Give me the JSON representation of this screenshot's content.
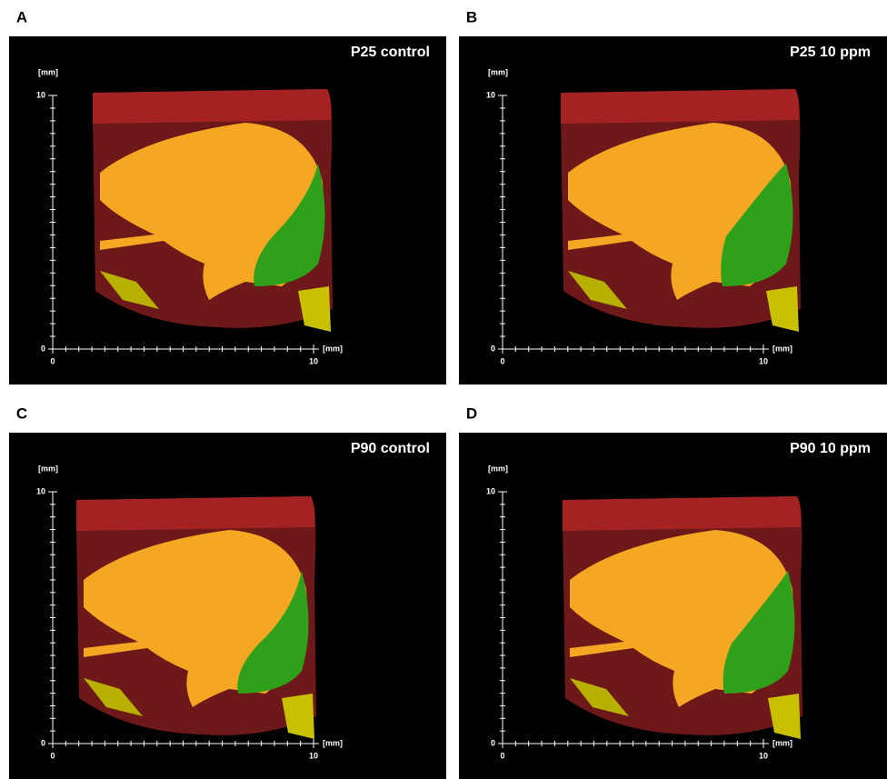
{
  "panels": [
    {
      "letter": "A",
      "title": "P25 control",
      "y_unit": "[mm]",
      "x_unit": "[mm]",
      "yticks": [
        0,
        10
      ],
      "xticks": [
        0,
        10
      ]
    },
    {
      "letter": "B",
      "title": "P25 10 ppm",
      "y_unit": "[mm]",
      "x_unit": "[mm]",
      "yticks": [
        0,
        10
      ],
      "xticks": [
        0,
        10
      ]
    },
    {
      "letter": "C",
      "title": "P90 control",
      "y_unit": "[mm]",
      "x_unit": "[mm]",
      "yticks": [
        0,
        10
      ],
      "xticks": [
        0,
        10
      ]
    },
    {
      "letter": "D",
      "title": "P90 10 ppm",
      "y_unit": "[mm]",
      "x_unit": "[mm]",
      "yticks": [
        0,
        10
      ],
      "xticks": [
        0,
        10
      ]
    }
  ]
}
